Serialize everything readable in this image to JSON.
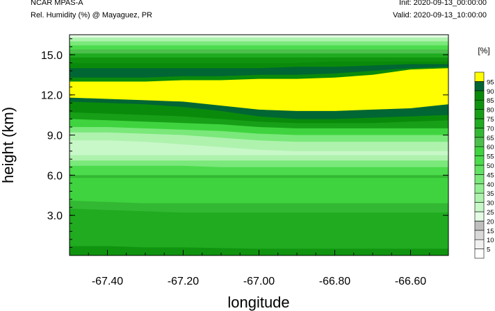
{
  "header": {
    "model": "NCAR MPAS-A",
    "variable": "Rel. Humidity (%) @ Mayaguez, PR",
    "init": "Init: 2020-09-13_00:00:00",
    "valid": "Valid: 2020-09-13_10:00:00"
  },
  "chart_data": {
    "type": "heatmap",
    "xlabel": "longitude",
    "ylabel": "height (km)",
    "xlim": [
      -67.5,
      -66.5
    ],
    "ylim": [
      0,
      16.5
    ],
    "x_ticks": [
      -67.4,
      -67.2,
      -67.0,
      -66.8,
      -66.6
    ],
    "x_tick_labels": [
      "-67.40",
      "-67.20",
      "-67.00",
      "-66.80",
      "-66.60"
    ],
    "y_ticks": [
      3.0,
      6.0,
      9.0,
      12.0,
      15.0
    ],
    "y_tick_labels": [
      "3.0",
      "6.0",
      "9.0",
      "12.0",
      "15.0"
    ],
    "colorbar": {
      "unit": "[%]",
      "levels": [
        5,
        10,
        15,
        20,
        25,
        30,
        35,
        40,
        45,
        50,
        55,
        60,
        65,
        70,
        75,
        80,
        85,
        90,
        95
      ],
      "colors": [
        "#ffffff",
        "#f0f0f0",
        "#d9d9d9",
        "#bfbfbf",
        "#e4fbe4",
        "#c8f7c8",
        "#aef2ae",
        "#94ee94",
        "#7ae87a",
        "#62e262",
        "#4cdb4c",
        "#3fd43f",
        "#4cbf4c",
        "#33b833",
        "#20ab20",
        "#179f17",
        "#109410",
        "#0a8a0a",
        "#006633",
        "#ffff00"
      ]
    },
    "layers": [
      {
        "rh": 80,
        "top": [
          0.7,
          0.7,
          0.6,
          0.6,
          0.55,
          0.5,
          0.5,
          0.5,
          0.5,
          0.5,
          0.5
        ]
      },
      {
        "rh": 70,
        "top": [
          3.5,
          3.4,
          3.3,
          3.2,
          3.2,
          3.2,
          3.2,
          3.2,
          3.2,
          3.2,
          3.2
        ]
      },
      {
        "rh": 65,
        "top": [
          4.1,
          4.0,
          3.9,
          3.9,
          3.9,
          3.9,
          3.9,
          3.9,
          3.9,
          3.9,
          3.9
        ]
      },
      {
        "rh": 55,
        "top": [
          5.8,
          5.8,
          5.8,
          5.8,
          5.8,
          5.8,
          5.8,
          5.8,
          5.8,
          5.8,
          5.8
        ]
      },
      {
        "rh": 65,
        "top": [
          6.0,
          6.0,
          6.0,
          6.0,
          6.0,
          6.0,
          6.0,
          6.0,
          6.0,
          6.0,
          6.0
        ]
      },
      {
        "rh": 50,
        "top": [
          6.7,
          6.7,
          6.7,
          6.7,
          6.6,
          6.6,
          6.6,
          6.6,
          6.6,
          6.6,
          6.6
        ]
      },
      {
        "rh": 40,
        "top": [
          7.1,
          7.1,
          7.1,
          7.1,
          7.1,
          7.1,
          7.1,
          7.1,
          7.1,
          7.1,
          7.1
        ]
      },
      {
        "rh": 30,
        "top": [
          7.5,
          7.5,
          7.5,
          7.5,
          7.5,
          7.5,
          7.5,
          7.5,
          7.5,
          7.5,
          7.5
        ]
      },
      {
        "rh": 25,
        "top": [
          8.6,
          8.6,
          8.5,
          8.3,
          8.1,
          7.9,
          7.8,
          7.8,
          7.8,
          7.8,
          7.8
        ]
      },
      {
        "rh": 30,
        "top": [
          9.2,
          9.2,
          9.1,
          9.0,
          8.8,
          8.6,
          8.5,
          8.5,
          8.5,
          8.5,
          8.5
        ]
      },
      {
        "rh": 40,
        "top": [
          9.6,
          9.6,
          9.5,
          9.4,
          9.3,
          9.1,
          9.0,
          9.0,
          9.0,
          9.0,
          9.0
        ]
      },
      {
        "rh": 55,
        "top": [
          10.2,
          10.1,
          10.0,
          9.9,
          9.8,
          9.6,
          9.5,
          9.5,
          9.5,
          9.5,
          9.5
        ]
      },
      {
        "rh": 75,
        "top": [
          10.7,
          10.6,
          10.5,
          10.4,
          10.2,
          10.0,
          9.9,
          9.9,
          9.9,
          10.0,
          10.1
        ]
      },
      {
        "rh": 85,
        "top": [
          11.5,
          11.4,
          11.3,
          11.1,
          10.8,
          10.4,
          10.2,
          10.2,
          10.3,
          10.4,
          10.5
        ]
      },
      {
        "rh": 90,
        "top": [
          11.8,
          11.7,
          11.6,
          11.5,
          11.2,
          10.9,
          10.8,
          10.8,
          10.9,
          11.0,
          11.3
        ]
      },
      {
        "rh": 95,
        "top": [
          13.0,
          13.0,
          13.0,
          13.1,
          13.1,
          13.2,
          13.2,
          13.3,
          13.5,
          13.9,
          14.0
        ]
      },
      {
        "rh": 85,
        "top": [
          13.3,
          13.3,
          13.3,
          13.4,
          13.4,
          13.5,
          13.5,
          13.6,
          13.8,
          14.0,
          14.1
        ]
      },
      {
        "rh": 90,
        "top": [
          14.0,
          14.0,
          14.0,
          14.0,
          14.0,
          14.0,
          14.1,
          14.1,
          14.2,
          14.3,
          14.3
        ]
      },
      {
        "rh": 85,
        "top": [
          14.4,
          14.4,
          14.4,
          14.4,
          14.4,
          14.4,
          14.4,
          14.5,
          14.5,
          14.5,
          14.5
        ]
      },
      {
        "rh": 80,
        "top": [
          14.8,
          14.8,
          14.8,
          14.8,
          14.8,
          14.8,
          14.8,
          14.8,
          14.8,
          14.8,
          14.8
        ]
      },
      {
        "rh": 70,
        "top": [
          15.1,
          15.1,
          15.1,
          15.1,
          15.1,
          15.1,
          15.1,
          15.1,
          15.1,
          15.1,
          15.1
        ]
      },
      {
        "rh": 60,
        "top": [
          15.4,
          15.4,
          15.4,
          15.4,
          15.4,
          15.4,
          15.4,
          15.4,
          15.4,
          15.4,
          15.4
        ]
      },
      {
        "rh": 50,
        "top": [
          15.7,
          15.7,
          15.7,
          15.7,
          15.7,
          15.7,
          15.7,
          15.7,
          15.7,
          15.7,
          15.7
        ]
      },
      {
        "rh": 40,
        "top": [
          16.0,
          16.0,
          16.0,
          16.0,
          16.0,
          16.0,
          16.0,
          16.0,
          16.0,
          16.0,
          16.0
        ]
      },
      {
        "rh": 30,
        "top": [
          16.3,
          16.3,
          16.3,
          16.3,
          16.3,
          16.3,
          16.3,
          16.3,
          16.3,
          16.3,
          16.3
        ]
      },
      {
        "rh": 20,
        "top": [
          16.5,
          16.5,
          16.5,
          16.5,
          16.5,
          16.5,
          16.5,
          16.5,
          16.5,
          16.5,
          16.5
        ]
      }
    ],
    "layer_x": [
      -67.5,
      -67.4,
      -67.3,
      -67.2,
      -67.1,
      -67.0,
      -66.9,
      -66.8,
      -66.7,
      -66.6,
      -66.5
    ]
  }
}
